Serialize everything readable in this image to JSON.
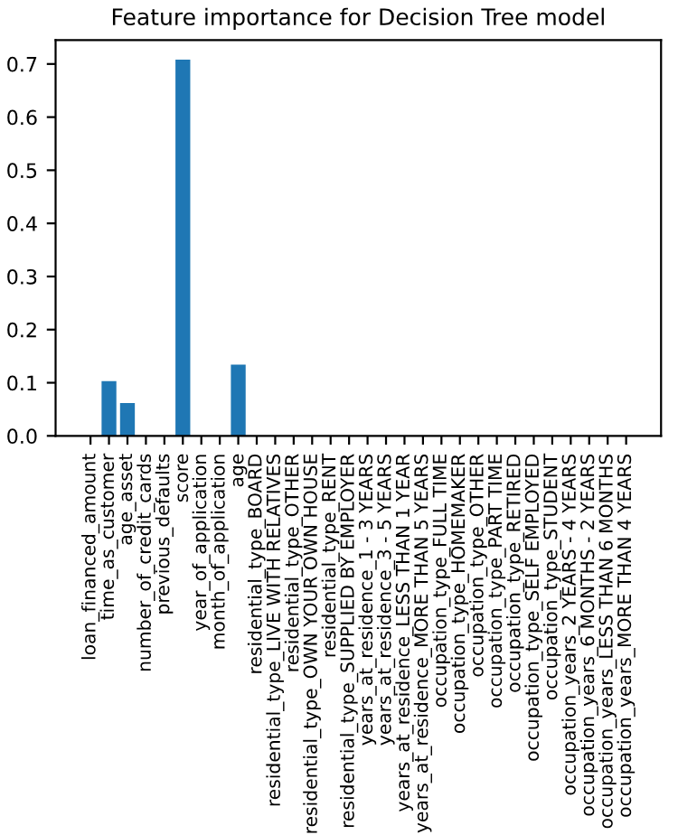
{
  "chart_data": {
    "type": "bar",
    "title": "Feature importance for Decision Tree model",
    "categories": [
      "loan_financed_amount",
      "time_as_customer",
      "age_asset",
      "number_of_credit_cards",
      "previous_defaults",
      "score",
      "year_of_application",
      "month_of_application",
      "age",
      "residential_type_BOARD",
      "residential_type_LIVE WITH RELATIVES",
      "residential_type_OTHER",
      "residential_type_OWN YOUR OWN HOUSE",
      "residential_type_RENT",
      "residential_type_SUPPLIED BY EMPLOYER",
      "years_at_residence_1 - 3 YEARS",
      "years_at_residence_3 - 5 YEARS",
      "years_at_residence_LESS THAN 1 YEAR",
      "years_at_residence_MORE THAN 5 YEARS",
      "occupation_type_FULL TIME",
      "occupation_type_HOMEMAKER",
      "occupation_type_OTHER",
      "occupation_type_PART TIME",
      "occupation_type_RETIRED",
      "occupation_type_SELF EMPLOYED",
      "occupation_type_STUDENT",
      "occupation_years_2 YEARS - 4 YEARS",
      "occupation_years_6 MONTHS - 2 YEARS",
      "occupation_years_LESS THAN 6 MONTHS",
      "occupation_years_MORE THAN 4 YEARS"
    ],
    "values": [
      0,
      0.103,
      0.062,
      0,
      0,
      0.708,
      0,
      0,
      0.134,
      0,
      0,
      0,
      0,
      0,
      0,
      0,
      0,
      0,
      0,
      0,
      0,
      0,
      0,
      0,
      0,
      0,
      0,
      0,
      0,
      0
    ],
    "color": "#1f77b4",
    "ylim": [
      0,
      0.745
    ],
    "yticks": [
      {
        "value": 0,
        "label": "0.0"
      },
      0.1,
      0.2,
      0.3,
      0.4,
      0.5,
      0.6,
      0.7
    ],
    "grid": false
  }
}
